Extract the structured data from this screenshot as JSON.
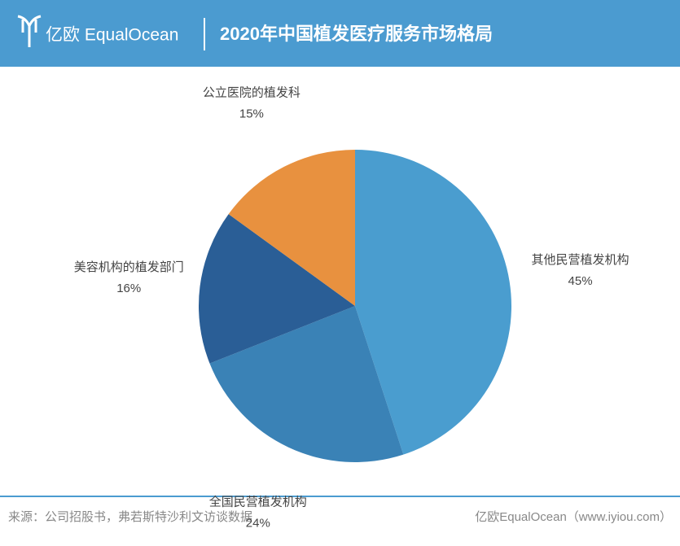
{
  "header": {
    "logo": "亿欧 EqualOcean"
  },
  "chart_data": {
    "type": "pie",
    "title": "2020年中国植发医疗服务市场格局",
    "categories": [
      "其他民营植发机构",
      "全国民营植发机构",
      "美容机构的植发部门",
      "公立医院的植发科"
    ],
    "values": [
      45,
      24,
      16,
      15
    ],
    "value_labels": [
      "45%",
      "24%",
      "16%",
      "15%"
    ],
    "colors": [
      "#4a9dcf",
      "#3a82b6",
      "#2a5e96",
      "#e8913f"
    ]
  },
  "footer": {
    "source": "来源：公司招股书，弗若斯特沙利文访谈数据",
    "credit": "亿欧EqualOcean（www.iyiou.com）"
  }
}
